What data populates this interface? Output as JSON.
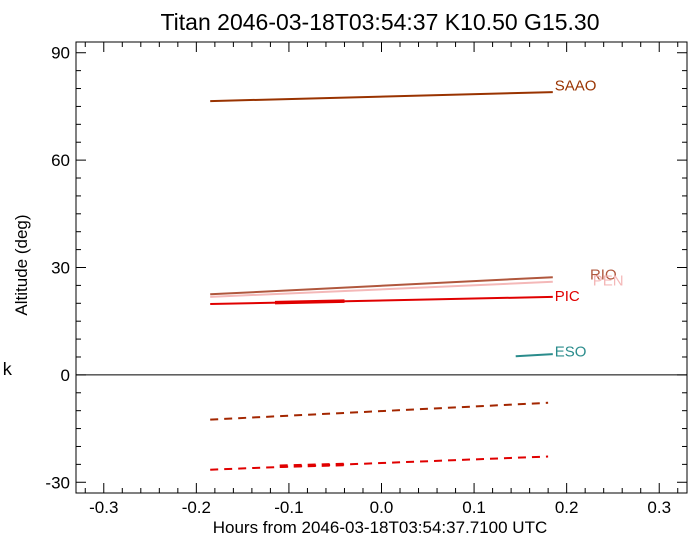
{
  "chart_data": {
    "type": "line",
    "title": "Titan 2046-03-18T03:54:37  K10.50  G15.30",
    "xlabel": "Hours from 2046-03-18T03:54:37.7100 UTC",
    "ylabel": "Altitude (deg)",
    "side_mark": "k",
    "xlim": [
      -0.33,
      0.33
    ],
    "ylim": [
      -33,
      93
    ],
    "xticks": [
      -0.3,
      -0.2,
      -0.1,
      0.0,
      0.1,
      0.2,
      0.3
    ],
    "xtick_labels": [
      "-0.3",
      "-0.2",
      "-0.1",
      "0.0",
      "0.1",
      "0.2",
      "0.3"
    ],
    "yticks": [
      -30,
      0,
      30,
      60,
      90
    ],
    "ytick_labels": [
      "-30",
      "0",
      "30",
      "60",
      "90"
    ],
    "grid": false,
    "zero_line": true,
    "series": [
      {
        "name": "SAAO",
        "color": "#993300",
        "style": "solid",
        "x": [
          -0.185,
          0.185
        ],
        "y": [
          76.5,
          79.0
        ],
        "label_at": [
          0.185,
          80.8
        ]
      },
      {
        "name": "RIO",
        "color": "#b0573d",
        "style": "solid",
        "x": [
          -0.185,
          0.185
        ],
        "y": [
          22.5,
          27.3
        ],
        "label_at": [
          0.223,
          28.0
        ]
      },
      {
        "name": "PEN",
        "color": "#f4b8b8",
        "style": "solid",
        "x": [
          -0.185,
          0.185
        ],
        "y": [
          21.8,
          26.0
        ],
        "label_at": [
          0.226,
          26.3
        ]
      },
      {
        "name": "PIC",
        "color": "#e00000",
        "style": "solid",
        "x": [
          -0.185,
          0.185
        ],
        "y": [
          19.8,
          21.8
        ],
        "label_at": [
          0.185,
          22.0
        ]
      },
      {
        "name": "",
        "color": "#e00000",
        "style": "bold",
        "x": [
          -0.115,
          -0.04
        ],
        "y": [
          20.2,
          20.6
        ]
      },
      {
        "name": "ESO",
        "color": "#2a8c8c",
        "style": "solid",
        "x": [
          0.145,
          0.185
        ],
        "y": [
          5.2,
          5.8
        ],
        "label_at": [
          0.185,
          6.6
        ]
      },
      {
        "name": "",
        "color": "#a32600",
        "style": "dashed",
        "x": [
          -0.185,
          0.18
        ],
        "y": [
          -12.5,
          -7.8
        ]
      },
      {
        "name": "",
        "color": "#e00000",
        "style": "dashed",
        "x": [
          -0.185,
          0.18
        ],
        "y": [
          -26.5,
          -22.8
        ]
      },
      {
        "name": "",
        "color": "#e00000",
        "style": "bold-dashed",
        "x": [
          -0.11,
          -0.035
        ],
        "y": [
          -25.5,
          -25.0
        ]
      }
    ]
  }
}
